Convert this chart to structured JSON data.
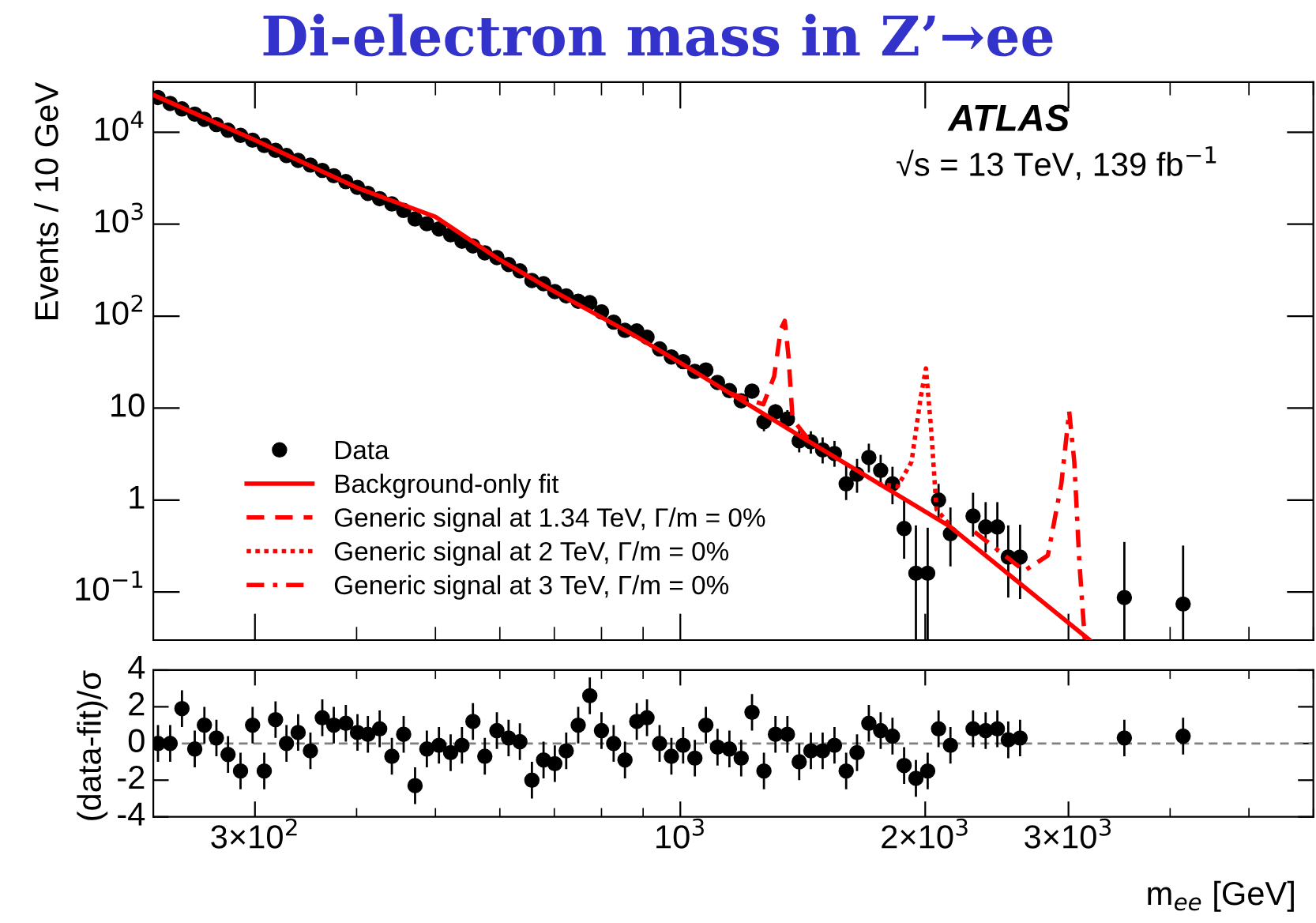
{
  "chart_data": [
    {
      "type": "scatter",
      "title": "Di-electron mass in Z’→ee",
      "ylabel": "Events / 10 GeV",
      "annotations": [
        "ATLAS",
        "√s = 13 TeV, 139 fb$^{−1}$"
      ],
      "log": "xy",
      "xlim": [
        225,
        6000
      ],
      "ylim": [
        0.03,
        35000
      ],
      "xticks": [
        {
          "value": 300,
          "label": null
        },
        {
          "value": 1000,
          "label": null
        },
        {
          "value": 2000,
          "label": null
        },
        {
          "value": 3000,
          "label": null
        }
      ],
      "yticks": [
        {
          "value": 0.1,
          "label": "10$^{−1}$"
        },
        1,
        10,
        {
          "value": 100,
          "label": "10$^{2}$"
        },
        {
          "value": 1000,
          "label": "10$^{3}$"
        },
        {
          "value": 10000,
          "label": "10$^{4}$"
        }
      ],
      "tick_labels": "y",
      "legend": "bottom left",
      "grid": false,
      "series": [
        {
          "name": "Data",
          "type": "scatter",
          "color": "#000000",
          "marker": "circle",
          "x": [
            228,
            236,
            244,
            253,
            260,
            269,
            278,
            288,
            298,
            308,
            318,
            328,
            339,
            351,
            363,
            375,
            388,
            401,
            413,
            427,
            442,
            457,
            472,
            488,
            505,
            522,
            539,
            556,
            575,
            595,
            615,
            635,
            657,
            679,
            701,
            724,
            749,
            774,
            800,
            828,
            855,
            884,
            910,
            943,
            975,
            1008,
            1042,
            1075,
            1111,
            1149,
            1188,
            1225,
            1267,
            1309,
            1354,
            1400,
            1447,
            1496,
            1547,
            1599,
            1649,
            1705,
            1763,
            1823,
            1884,
            1948,
            2014,
            2077,
            2148,
            2290,
            2373,
            2453,
            2530,
            2616,
            3514,
            4150
          ],
          "values": [
            23800,
            20500,
            17900,
            15700,
            13800,
            12100,
            10500,
            9230,
            8190,
            7170,
            6350,
            5570,
            4940,
            4390,
            3840,
            3360,
            2900,
            2510,
            2160,
            1890,
            1660,
            1410,
            1140,
            1010,
            887,
            766,
            653,
            580,
            488,
            433,
            364,
            310,
            244,
            225,
            185,
            166,
            145,
            140,
            111,
            86,
            70,
            69,
            59,
            44,
            36,
            32,
            25,
            26,
            19,
            15.5,
            12,
            15.3,
            7.1,
            9.1,
            7.6,
            4.4,
            4.3,
            3.5,
            3.2,
            1.5,
            1.9,
            2.9,
            2.1,
            1.5,
            0.49,
            0.16,
            0.16,
            1.0,
            0.43,
            0.67,
            0.51,
            0.51,
            0.24,
            0.24,
            0.087,
            0.074
          ],
          "errors": [
            null,
            null,
            null,
            null,
            null,
            null,
            null,
            null,
            null,
            null,
            null,
            null,
            null,
            null,
            null,
            null,
            null,
            null,
            null,
            null,
            null,
            null,
            null,
            null,
            null,
            null,
            null,
            null,
            null,
            null,
            null,
            null,
            null,
            null,
            null,
            null,
            null,
            null,
            null,
            null,
            null,
            null,
            null,
            null,
            null,
            null,
            null,
            null,
            null,
            null,
            null,
            null,
            [
              5.6,
              8.9
            ],
            [
              7.4,
              11
            ],
            [
              6.0,
              9.5
            ],
            [
              3.3,
              5.8
            ],
            [
              3.2,
              5.6
            ],
            [
              2.5,
              4.8
            ],
            [
              2.3,
              4.4
            ],
            [
              1.0,
              2.5
            ],
            [
              1.2,
              2.8
            ],
            [
              2.0,
              4.1
            ],
            [
              1.4,
              3.1
            ],
            [
              0.9,
              2.3
            ],
            [
              0.23,
              1.0
            ],
            [
              0.03,
              0.53
            ],
            [
              0.03,
              0.5
            ],
            [
              0.6,
              1.5
            ],
            [
              0.19,
              0.83
            ],
            [
              0.4,
              1.2
            ],
            [
              0.27,
              0.95
            ],
            [
              0.27,
              0.95
            ],
            [
              0.087,
              0.53
            ],
            [
              0.084,
              0.54
            ],
            [
              0.03,
              0.35
            ],
            [
              0.03,
              0.32
            ]
          ]
        },
        {
          "name": "Background-only fit",
          "type": "line",
          "color": "#ff0000",
          "line_style": "solid",
          "x": [
            225,
            300,
            400,
            500,
            600,
            700,
            872,
            1000,
            1363,
            2142,
            3186
          ],
          "values": [
            25400,
            8200,
            2500,
            1200,
            410,
            185,
            64,
            31,
            5.8,
            0.52,
            0.03
          ]
        },
        {
          "name": "Generic signal at 1.34 TeV, Γ/m = 0%",
          "type": "line",
          "color": "#ff0000",
          "line_style": "dashed",
          "x": [
            1150,
            1265,
            1304,
            1329,
            1344,
            1358,
            1374,
            1450
          ],
          "values": [
            14.5,
            11,
            22,
            72,
            89,
            37,
            7.6,
            4.1
          ]
        },
        {
          "name": "Generic signal at 2 TeV, Γ/m = 0%",
          "type": "line",
          "color": "#ff0000",
          "line_style": "dotted",
          "x": [
            1750,
            1849,
            1924,
            1974,
            2004,
            2034,
            2065,
            2150
          ],
          "values": [
            1.5,
            1.4,
            2.6,
            12.9,
            27,
            5.8,
            0.79,
            0.52
          ]
        },
        {
          "name": "Generic signal at 3 TeV, Γ/m = 0%",
          "type": "line",
          "color": "#ff0000",
          "line_style": "dashdot",
          "x": [
            2300,
            2439,
            2648,
            2830,
            2940,
            3006,
            3050,
            3094,
            3142
          ],
          "values": [
            0.45,
            0.3,
            0.17,
            0.25,
            1.5,
            9.2,
            2.6,
            0.21,
            0.03
          ]
        }
      ]
    },
    {
      "type": "scatter",
      "xlabel": "m$_{ee}$ [GeV]",
      "ylabel": "(data-fit)/σ",
      "log": "x",
      "xlim": [
        225,
        6000
      ],
      "ylim": [
        -4,
        4
      ],
      "yticks": [
        -4,
        -2,
        0,
        2,
        4
      ],
      "xticks": [
        {
          "value": 300,
          "label": "3×10$^{2}$"
        },
        {
          "value": 1000,
          "label": "10$^{3}$"
        },
        {
          "value": 2000,
          "label": "2×10$^{3}$"
        },
        {
          "value": 3000,
          "label": "3×10$^{3}$"
        }
      ],
      "grid": false,
      "marker": "circle",
      "ref_lines": [
        {
          "axis": "y",
          "value": 0,
          "label": null,
          "color": "#808080",
          "line_style": "dashed"
        }
      ],
      "series": [
        {
          "type": "scatter",
          "color": "#000000",
          "x": [
            228,
            236,
            244,
            253,
            260,
            269,
            278,
            288,
            298,
            308,
            318,
            328,
            339,
            351,
            363,
            375,
            388,
            401,
            413,
            427,
            442,
            457,
            472,
            488,
            505,
            522,
            539,
            556,
            575,
            595,
            615,
            635,
            657,
            679,
            701,
            724,
            749,
            774,
            800,
            828,
            855,
            884,
            910,
            943,
            975,
            1008,
            1042,
            1075,
            1111,
            1149,
            1188,
            1225,
            1267,
            1309,
            1354,
            1400,
            1447,
            1496,
            1547,
            1599,
            1649,
            1705,
            1763,
            1823,
            1884,
            1948,
            2014,
            2077,
            2148,
            2290,
            2373,
            2453,
            2530,
            2616,
            3514,
            4150
          ],
          "values": [
            0.0,
            0.0,
            1.9,
            -0.3,
            1.0,
            0.3,
            -0.6,
            -1.5,
            1.0,
            -1.5,
            1.3,
            0.0,
            0.6,
            -0.4,
            1.4,
            1.0,
            1.1,
            0.6,
            0.5,
            0.8,
            -0.7,
            0.5,
            -2.3,
            -0.3,
            -0.1,
            -0.5,
            -0.1,
            1.2,
            -0.7,
            0.7,
            0.3,
            0.1,
            -2.0,
            -0.9,
            -1.1,
            -0.4,
            1.0,
            2.6,
            0.7,
            0.0,
            -0.9,
            1.2,
            1.4,
            0.0,
            -0.7,
            -0.1,
            -0.8,
            1.0,
            -0.2,
            -0.3,
            -0.8,
            1.7,
            -1.5,
            0.5,
            0.5,
            -1.0,
            -0.4,
            -0.4,
            -0.1,
            -1.5,
            -0.5,
            1.1,
            0.7,
            0.4,
            -1.2,
            -1.9,
            -1.5,
            0.8,
            -0.1,
            0.8,
            0.7,
            0.8,
            0.2,
            0.3,
            0.3,
            0.4
          ],
          "errors": [
            1,
            1,
            1,
            1,
            1,
            1,
            1,
            1,
            1,
            1,
            1,
            1,
            1,
            1,
            1,
            1,
            1,
            1,
            1,
            1,
            1,
            1,
            1,
            1,
            1,
            1,
            1,
            1,
            1,
            1,
            1,
            1,
            1,
            1,
            1,
            1,
            1,
            1,
            1,
            1,
            1,
            1,
            1,
            1,
            1,
            1,
            1,
            1,
            1,
            1,
            1,
            1,
            1,
            1,
            1,
            1,
            1,
            1,
            1,
            1,
            1,
            1,
            1,
            1,
            1,
            1,
            1,
            1,
            1,
            1,
            1,
            1,
            1,
            1,
            1,
            1
          ]
        }
      ]
    }
  ]
}
